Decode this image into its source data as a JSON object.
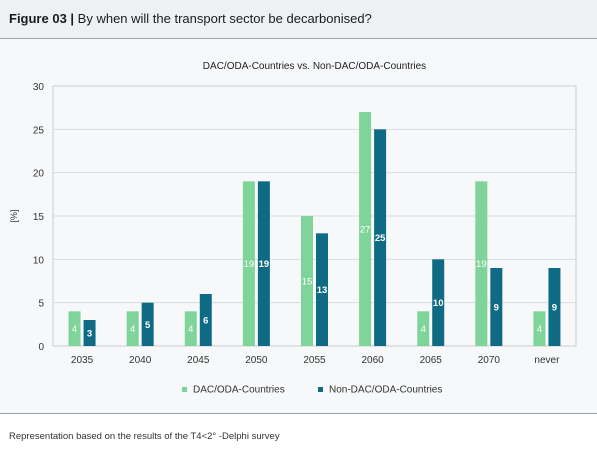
{
  "figure": {
    "label": "Figure 03 |",
    "title": "By when will the transport sector be decarbonised?",
    "note": "Representation based on the results of the T4<2° -Delphi survey"
  },
  "colors": {
    "series_a": "#7fd49a",
    "series_b": "#0f6b84",
    "grid": "#d9dde1",
    "axis": "#444444"
  },
  "chart_data": {
    "type": "bar",
    "title": "DAC/ODA-Countries vs. Non-DAC/ODA-Countries",
    "xlabel": "",
    "ylabel": "[%]",
    "ylim": [
      0,
      30
    ],
    "yticks": [
      0,
      5,
      10,
      15,
      20,
      25,
      30
    ],
    "grid": true,
    "legend_position": "bottom",
    "categories": [
      "2035",
      "2040",
      "2045",
      "2050",
      "2055",
      "2060",
      "2065",
      "2070",
      "never"
    ],
    "series": [
      {
        "name": "DAC/ODA-Countries",
        "values": [
          4,
          4,
          4,
          19,
          15,
          27,
          4,
          19,
          4
        ]
      },
      {
        "name": "Non-DAC/ODA-Countries",
        "values": [
          3,
          5,
          6,
          19,
          13,
          25,
          10,
          9,
          9
        ]
      }
    ]
  }
}
